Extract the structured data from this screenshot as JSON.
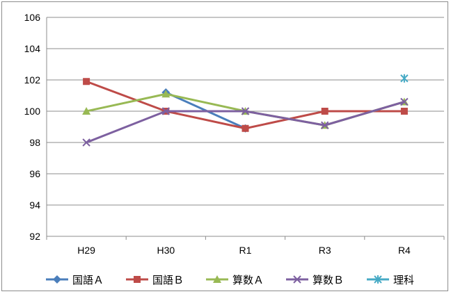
{
  "chart_data": {
    "type": "line",
    "title": "",
    "xlabel": "",
    "ylabel": "",
    "categories": [
      "H29",
      "H30",
      "R1",
      "R3",
      "R4"
    ],
    "ylim": [
      92,
      106
    ],
    "yticks": [
      92,
      94,
      96,
      98,
      100,
      102,
      104,
      106
    ],
    "grid": true,
    "legend": "bottom",
    "series": [
      {
        "name": "国語Ａ",
        "color": "#4a7ebb",
        "marker": "diamond",
        "values": [
          null,
          101.2,
          98.9,
          null,
          null
        ]
      },
      {
        "name": "国語Ｂ",
        "color": "#be4b48",
        "marker": "square",
        "values": [
          101.9,
          100.0,
          98.9,
          100.0,
          100.0
        ]
      },
      {
        "name": "算数Ａ",
        "color": "#98b954",
        "marker": "triangle",
        "values": [
          100.0,
          101.1,
          100.0,
          99.1,
          100.6
        ]
      },
      {
        "name": "算数Ｂ",
        "color": "#7d60a0",
        "marker": "x",
        "values": [
          98.0,
          100.0,
          100.0,
          99.1,
          100.6
        ]
      },
      {
        "name": "理科",
        "color": "#46aac5",
        "marker": "star",
        "values": [
          null,
          null,
          null,
          null,
          102.1
        ]
      }
    ]
  }
}
